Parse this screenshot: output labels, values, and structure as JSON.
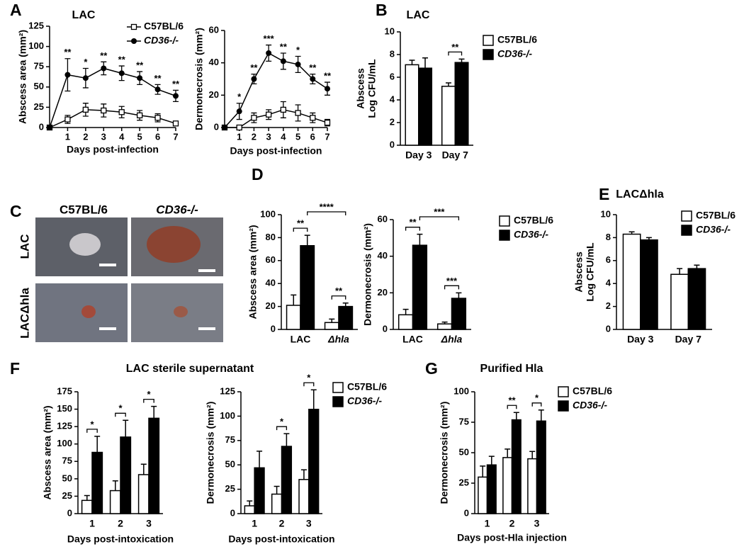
{
  "panel_labels": [
    "A",
    "B",
    "C",
    "D",
    "E",
    "F",
    "G"
  ],
  "photo_grid": {
    "columns": [
      "C57BL/6",
      "CD36-/-"
    ],
    "rows": [
      "LAC",
      "LACΔhla"
    ]
  },
  "chart_data": [
    {
      "type": "line",
      "title": "LAC",
      "x": [
        0,
        1,
        2,
        3,
        4,
        5,
        6,
        7
      ],
      "xlim": [
        0,
        7
      ],
      "xticks": [
        1,
        2,
        3,
        4,
        5,
        6,
        7
      ],
      "ylim": [
        0,
        125
      ],
      "yticks": [
        0,
        25,
        50,
        75,
        100,
        125
      ],
      "x_label": "Days post-infection",
      "y_label": "Abscess area (mm²)",
      "series": [
        {
          "name": "C57BL/6",
          "color": "#000000",
          "marker": "open-square",
          "values": [
            0,
            10,
            22,
            21,
            19,
            15,
            12,
            5
          ],
          "errors": [
            0,
            5,
            8,
            8,
            7,
            6,
            5,
            2
          ]
        },
        {
          "name": "CD36-/-",
          "color": "#000000",
          "marker": "filled-circle",
          "values": [
            0,
            65,
            61,
            73,
            67,
            61,
            47,
            39
          ],
          "errors": [
            0,
            20,
            12,
            8,
            9,
            8,
            6,
            7
          ]
        }
      ],
      "significance": [
        "**",
        "*",
        "**",
        "**",
        "**",
        "**",
        "**"
      ]
    },
    {
      "type": "line",
      "x": [
        0,
        1,
        2,
        3,
        4,
        5,
        6,
        7
      ],
      "xlim": [
        0,
        7
      ],
      "xticks": [
        1,
        2,
        3,
        4,
        5,
        6,
        7
      ],
      "ylim": [
        0,
        60
      ],
      "yticks": [
        0,
        20,
        40,
        60
      ],
      "x_label": "Days post-infection",
      "y_label": "Dermonecrosis (mm²)",
      "series": [
        {
          "color": "#000000",
          "marker": "open-square",
          "values": [
            0,
            0,
            6,
            8,
            11,
            9,
            6,
            3
          ],
          "errors": [
            0,
            1,
            3,
            3,
            5,
            5,
            3,
            2
          ]
        },
        {
          "color": "#000000",
          "marker": "filled-circle",
          "values": [
            0,
            10,
            30,
            46,
            41,
            39,
            30,
            24
          ],
          "errors": [
            0,
            5,
            3,
            5,
            5,
            5,
            3,
            4
          ]
        }
      ],
      "significance": [
        "*",
        "**",
        "***",
        "**",
        "*",
        "**",
        "**"
      ]
    },
    {
      "type": "bar",
      "title": "LAC",
      "categories": [
        "Day 3",
        "Day 7"
      ],
      "ylim": [
        0,
        10
      ],
      "yticks": [
        0,
        2,
        4,
        6,
        8,
        10
      ],
      "y_label": [
        "Abscess",
        "Log CFU/mL"
      ],
      "series": [
        {
          "name": "C57BL/6",
          "color": "#ffffff",
          "values": [
            7.1,
            5.2
          ],
          "errors": [
            0.4,
            0.3
          ]
        },
        {
          "name": "CD36-/-",
          "color": "#000000",
          "values": [
            6.8,
            7.3
          ],
          "errors": [
            0.9,
            0.3
          ]
        }
      ],
      "significance": [
        "**"
      ]
    },
    {
      "type": "bar",
      "categories": [
        "LAC",
        "Δhla"
      ],
      "ylim": [
        0,
        100
      ],
      "yticks": [
        0,
        20,
        40,
        60,
        80,
        100
      ],
      "y_label": "Abscess area (mm²)",
      "series": [
        {
          "color": "#ffffff",
          "values": [
            21,
            6
          ],
          "errors": [
            9,
            3
          ]
        },
        {
          "color": "#000000",
          "values": [
            73,
            20
          ],
          "errors": [
            9,
            3
          ]
        }
      ],
      "significance": [
        "**",
        "****",
        "**"
      ]
    },
    {
      "type": "bar",
      "categories": [
        "LAC",
        "Δhla"
      ],
      "ylim": [
        0,
        60
      ],
      "yticks": [
        0,
        20,
        40,
        60
      ],
      "y_label": "Dermonecrosis (mm²)",
      "series": [
        {
          "name": "C57BL/6",
          "color": "#ffffff",
          "values": [
            8,
            3
          ],
          "errors": [
            3,
            1
          ]
        },
        {
          "name": "CD36-/-",
          "color": "#000000",
          "values": [
            46,
            17
          ],
          "errors": [
            6,
            3
          ]
        }
      ],
      "significance": [
        "**",
        "***",
        "***"
      ]
    },
    {
      "type": "bar",
      "title": "LACΔhla",
      "categories": [
        "Day 3",
        "Day 7"
      ],
      "ylim": [
        0,
        10
      ],
      "yticks": [
        0,
        2,
        4,
        6,
        8,
        10
      ],
      "y_label": [
        "Abscess",
        "Log CFU/mL"
      ],
      "series": [
        {
          "name": "C57BL/6",
          "color": "#ffffff",
          "values": [
            8.3,
            4.8
          ],
          "errors": [
            0.2,
            0.5
          ]
        },
        {
          "name": "CD36-/-",
          "color": "#000000",
          "values": [
            7.8,
            5.3
          ],
          "errors": [
            0.2,
            0.3
          ]
        }
      ]
    },
    {
      "type": "bar",
      "title": "LAC sterile supernatant",
      "categories": [
        "1",
        "2",
        "3"
      ],
      "ylim": [
        0,
        175
      ],
      "yticks": [
        0,
        25,
        50,
        75,
        100,
        125,
        150,
        175
      ],
      "x_label": "Days post-intoxication",
      "y_label": "Abscess area (mm²)",
      "series": [
        {
          "color": "#ffffff",
          "values": [
            19,
            33,
            56
          ],
          "errors": [
            7,
            14,
            15
          ]
        },
        {
          "color": "#000000",
          "values": [
            88,
            110,
            137
          ],
          "errors": [
            23,
            24,
            17
          ]
        }
      ],
      "significance": [
        "*",
        "*",
        "*"
      ]
    },
    {
      "type": "bar",
      "categories": [
        "1",
        "2",
        "3"
      ],
      "ylim": [
        0,
        125
      ],
      "yticks": [
        0,
        25,
        50,
        75,
        100,
        125
      ],
      "x_label": "Days post-intoxication",
      "y_label": "Dermonecrosis (mm²)",
      "series": [
        {
          "name": "C57BL/6",
          "color": "#ffffff",
          "values": [
            8,
            20,
            35
          ],
          "errors": [
            5,
            8,
            10
          ]
        },
        {
          "name": "CD36-/-",
          "color": "#000000",
          "values": [
            47,
            69,
            107
          ],
          "errors": [
            17,
            13,
            20
          ]
        }
      ],
      "significance": [
        "*",
        "*"
      ]
    },
    {
      "type": "bar",
      "title": "Purified Hla",
      "categories": [
        "1",
        "2",
        "3"
      ],
      "ylim": [
        0,
        100
      ],
      "yticks": [
        0,
        25,
        50,
        75,
        100
      ],
      "x_label": "Days post-Hla injection",
      "y_label": "Dermonecrosis (mm²)",
      "series": [
        {
          "name": "C57BL/6",
          "color": "#ffffff",
          "values": [
            30,
            46,
            45
          ],
          "errors": [
            9,
            7,
            6
          ]
        },
        {
          "name": "CD36-/-",
          "color": "#000000",
          "values": [
            40,
            77,
            76
          ],
          "errors": [
            7,
            6,
            9
          ]
        }
      ],
      "significance": [
        "**",
        "*"
      ]
    }
  ]
}
